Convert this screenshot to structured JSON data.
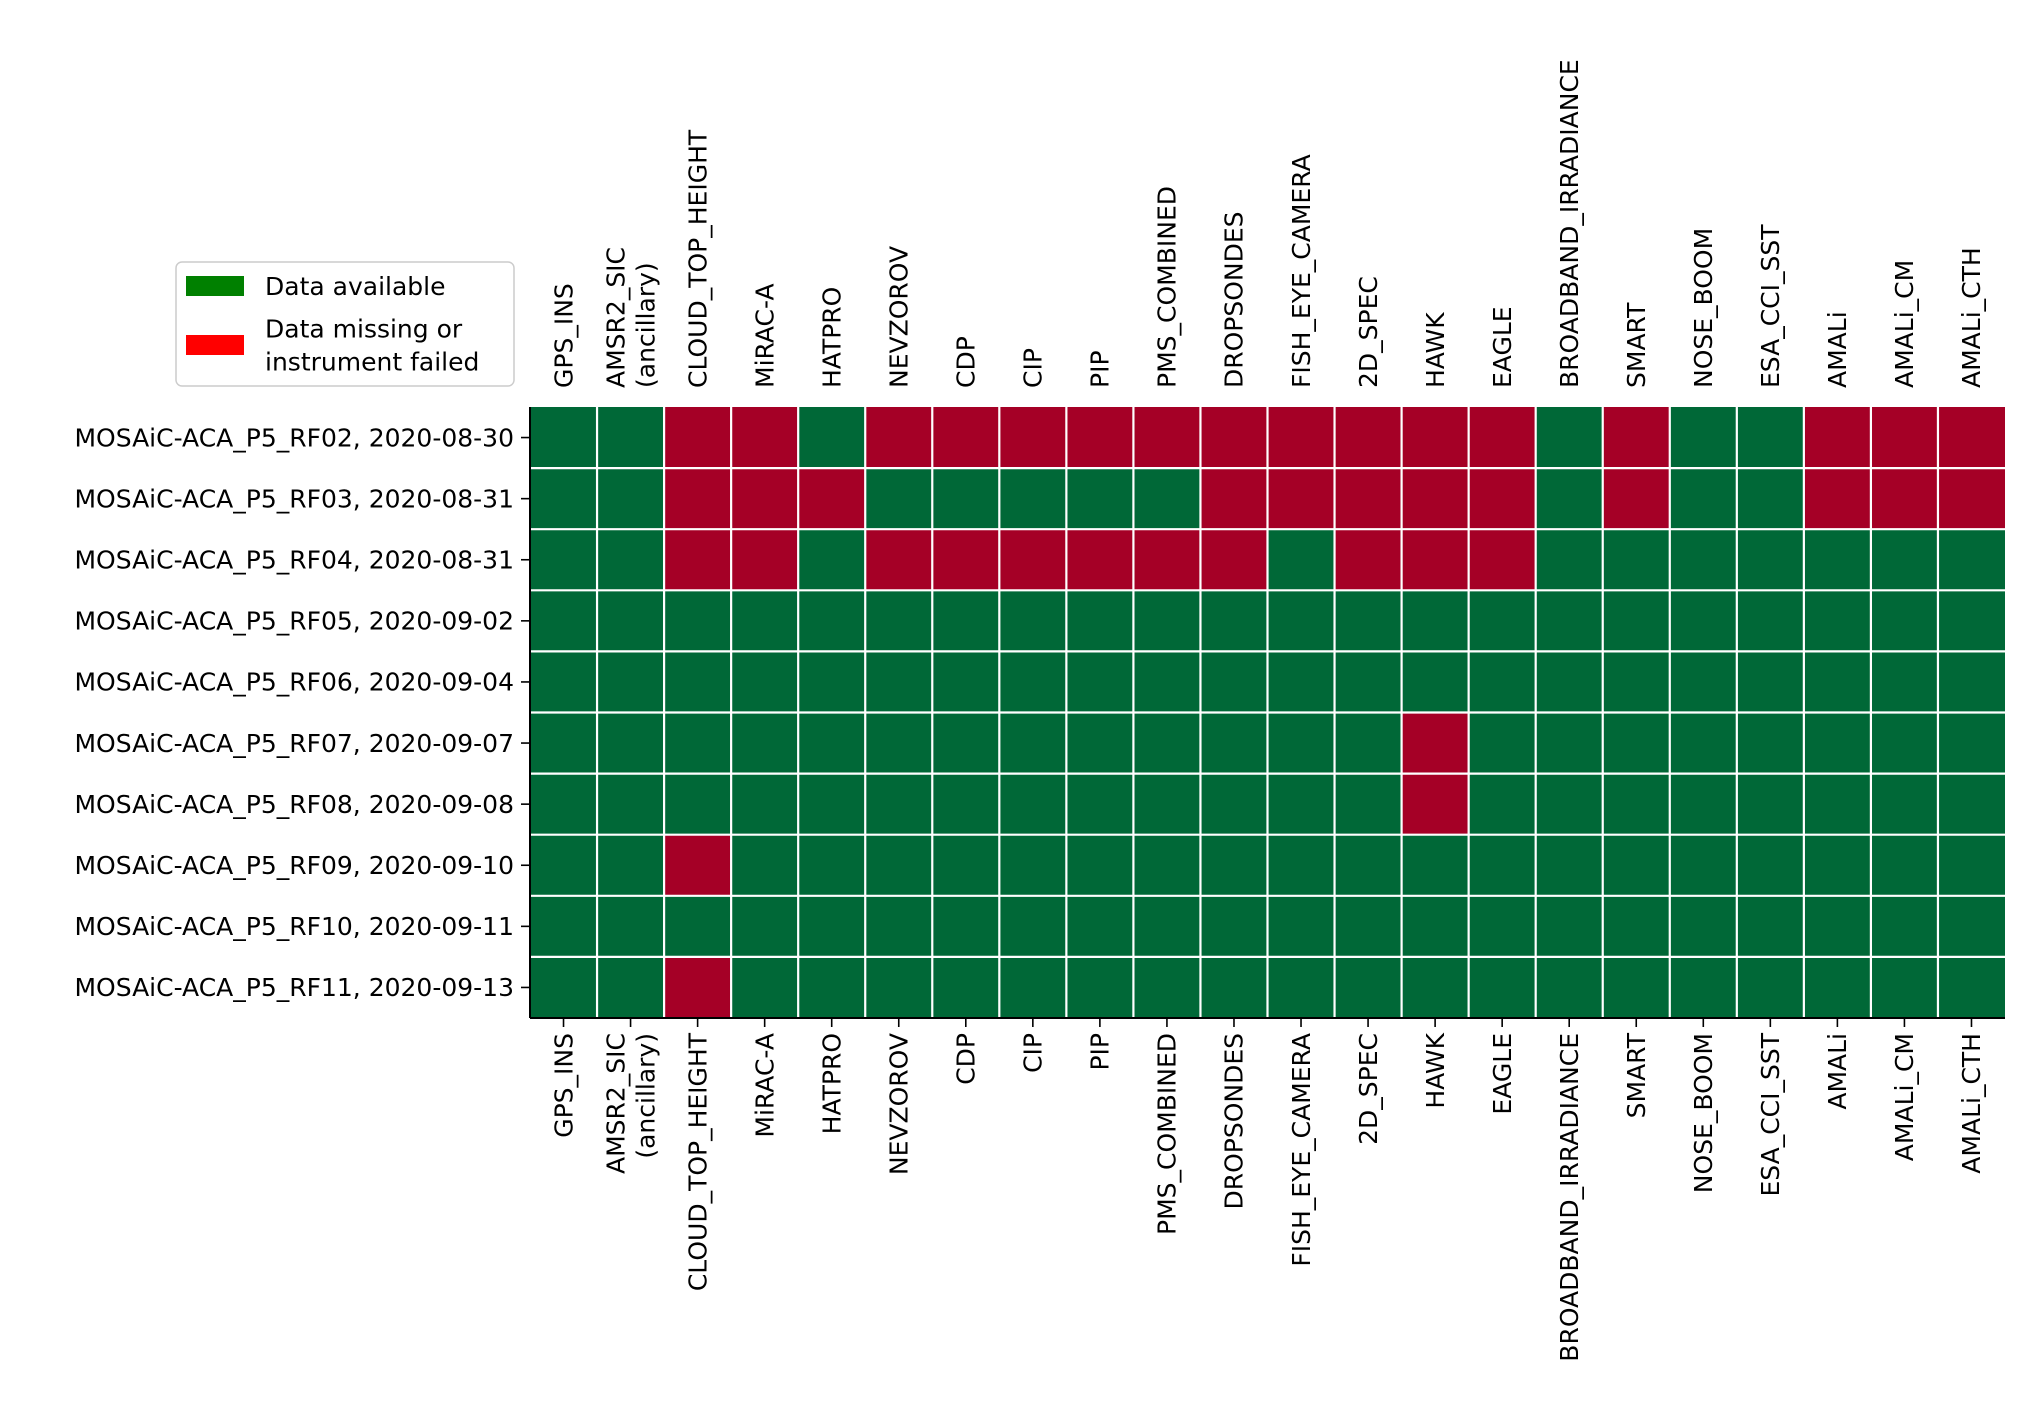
{
  "chart_data": {
    "type": "heatmap",
    "title": "",
    "xlabel": "",
    "ylabel": "",
    "columns": [
      [
        "GPS_INS"
      ],
      [
        "AMSR2_SIC",
        "(ancillary)"
      ],
      [
        "CLOUD_TOP_HEIGHT"
      ],
      [
        "MiRAC-A"
      ],
      [
        "HATPRO"
      ],
      [
        "NEVZOROV"
      ],
      [
        "CDP"
      ],
      [
        "CIP"
      ],
      [
        "PIP"
      ],
      [
        "PMS_COMBINED"
      ],
      [
        "DROPSONDES"
      ],
      [
        "FISH_EYE_CAMERA"
      ],
      [
        "2D_SPEC"
      ],
      [
        "HAWK"
      ],
      [
        "EAGLE"
      ],
      [
        "BROADBAND_IRRADIANCE"
      ],
      [
        "SMART"
      ],
      [
        "NOSE_BOOM"
      ],
      [
        "ESA_CCI_SST"
      ],
      [
        "AMALi"
      ],
      [
        "AMALi_CM"
      ],
      [
        "AMALi_CTH"
      ]
    ],
    "rows": [
      "MOSAiC-ACA_P5_RF02, 2020-08-30",
      "MOSAiC-ACA_P5_RF03, 2020-08-31",
      "MOSAiC-ACA_P5_RF04, 2020-08-31",
      "MOSAiC-ACA_P5_RF05, 2020-09-02",
      "MOSAiC-ACA_P5_RF06, 2020-09-04",
      "MOSAiC-ACA_P5_RF07, 2020-09-07",
      "MOSAiC-ACA_P5_RF08, 2020-09-08",
      "MOSAiC-ACA_P5_RF09, 2020-09-10",
      "MOSAiC-ACA_P5_RF10, 2020-09-11",
      "MOSAiC-ACA_P5_RF11, 2020-09-13"
    ],
    "values": [
      [
        1,
        1,
        0,
        0,
        1,
        0,
        0,
        0,
        0,
        0,
        0,
        0,
        0,
        0,
        0,
        1,
        0,
        1,
        1,
        0,
        0,
        0
      ],
      [
        1,
        1,
        0,
        0,
        0,
        1,
        1,
        1,
        1,
        1,
        0,
        0,
        0,
        0,
        0,
        1,
        0,
        1,
        1,
        0,
        0,
        0
      ],
      [
        1,
        1,
        0,
        0,
        1,
        0,
        0,
        0,
        0,
        0,
        0,
        1,
        0,
        0,
        0,
        1,
        1,
        1,
        1,
        1,
        1,
        1
      ],
      [
        1,
        1,
        1,
        1,
        1,
        1,
        1,
        1,
        1,
        1,
        1,
        1,
        1,
        1,
        1,
        1,
        1,
        1,
        1,
        1,
        1,
        1
      ],
      [
        1,
        1,
        1,
        1,
        1,
        1,
        1,
        1,
        1,
        1,
        1,
        1,
        1,
        1,
        1,
        1,
        1,
        1,
        1,
        1,
        1,
        1
      ],
      [
        1,
        1,
        1,
        1,
        1,
        1,
        1,
        1,
        1,
        1,
        1,
        1,
        1,
        0,
        1,
        1,
        1,
        1,
        1,
        1,
        1,
        1
      ],
      [
        1,
        1,
        1,
        1,
        1,
        1,
        1,
        1,
        1,
        1,
        1,
        1,
        1,
        0,
        1,
        1,
        1,
        1,
        1,
        1,
        1,
        1
      ],
      [
        1,
        1,
        0,
        1,
        1,
        1,
        1,
        1,
        1,
        1,
        1,
        1,
        1,
        1,
        1,
        1,
        1,
        1,
        1,
        1,
        1,
        1
      ],
      [
        1,
        1,
        1,
        1,
        1,
        1,
        1,
        1,
        1,
        1,
        1,
        1,
        1,
        1,
        1,
        1,
        1,
        1,
        1,
        1,
        1,
        1
      ],
      [
        1,
        1,
        0,
        1,
        1,
        1,
        1,
        1,
        1,
        1,
        1,
        1,
        1,
        1,
        1,
        1,
        1,
        1,
        1,
        1,
        1,
        1
      ]
    ],
    "cell_colors": {
      "1": "#006837",
      "0": "#a50026"
    },
    "legend": {
      "placement": "upper-left",
      "entries": [
        {
          "lines": [
            "Data available"
          ],
          "color": "#008000"
        },
        {
          "lines": [
            "Data missing or",
            "instrument failed"
          ],
          "color": "#ff0000"
        }
      ]
    },
    "grid_color": "#ffffff"
  }
}
